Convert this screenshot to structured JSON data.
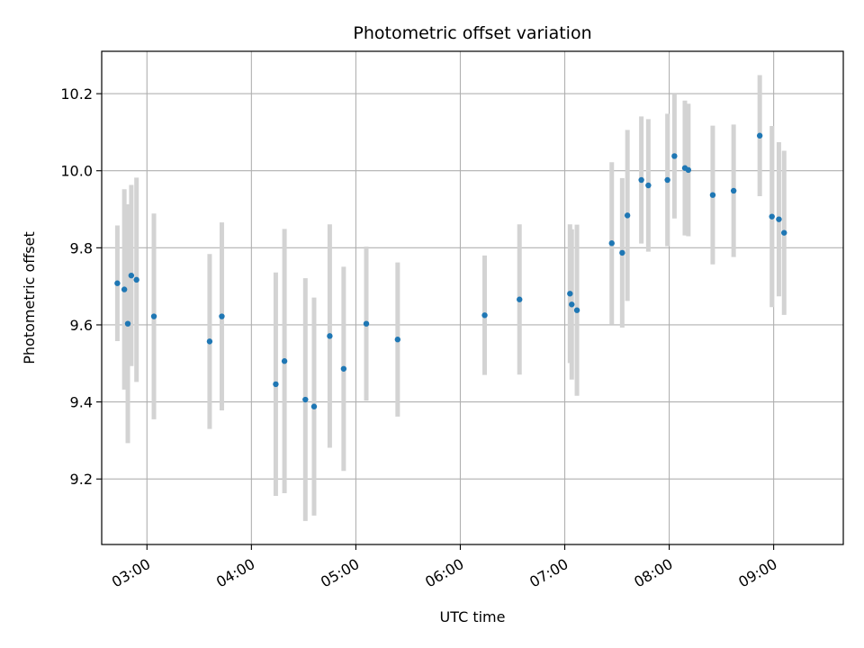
{
  "chart_data": {
    "type": "scatter",
    "title": "Photometric offset variation",
    "xlabel": "UTC time",
    "ylabel": "Photometric offset",
    "xlim": [
      "02:34",
      "09:40"
    ],
    "ylim": [
      9.03,
      10.31
    ],
    "grid": true,
    "x_ticks": [
      "03:00",
      "04:00",
      "05:00",
      "06:00",
      "07:00",
      "08:00",
      "09:00"
    ],
    "y_ticks": [
      9.2,
      9.4,
      9.6,
      9.8,
      10.0,
      10.2
    ],
    "point_color": "#1f77b4",
    "errorbar_color": "#d3d3d3",
    "series": [
      {
        "points": [
          {
            "x": "02:43",
            "y": 9.708,
            "err": 0.15
          },
          {
            "x": "02:47",
            "y": 9.692,
            "err": 0.26
          },
          {
            "x": "02:49",
            "y": 9.603,
            "err": 0.31
          },
          {
            "x": "02:51",
            "y": 9.728,
            "err": 0.235
          },
          {
            "x": "02:54",
            "y": 9.717,
            "err": 0.265
          },
          {
            "x": "03:04",
            "y": 9.622,
            "err": 0.267
          },
          {
            "x": "03:36",
            "y": 9.557,
            "err": 0.227
          },
          {
            "x": "03:43",
            "y": 9.622,
            "err": 0.244
          },
          {
            "x": "04:14",
            "y": 9.446,
            "err": 0.29
          },
          {
            "x": "04:19",
            "y": 9.506,
            "err": 0.343
          },
          {
            "x": "04:31",
            "y": 9.406,
            "err": 0.315
          },
          {
            "x": "04:36",
            "y": 9.388,
            "err": 0.283
          },
          {
            "x": "04:45",
            "y": 9.571,
            "err": 0.29
          },
          {
            "x": "04:53",
            "y": 9.486,
            "err": 0.265
          },
          {
            "x": "05:06",
            "y": 9.603,
            "err": 0.2
          },
          {
            "x": "05:24",
            "y": 9.562,
            "err": 0.2
          },
          {
            "x": "06:14",
            "y": 9.625,
            "err": 0.155
          },
          {
            "x": "06:34",
            "y": 9.666,
            "err": 0.195
          },
          {
            "x": "07:03",
            "y": 9.681,
            "err": 0.18
          },
          {
            "x": "07:04",
            "y": 9.653,
            "err": 0.195
          },
          {
            "x": "07:07",
            "y": 9.638,
            "err": 0.222
          },
          {
            "x": "07:27",
            "y": 9.812,
            "err": 0.21
          },
          {
            "x": "07:33",
            "y": 9.787,
            "err": 0.194
          },
          {
            "x": "07:36",
            "y": 9.884,
            "err": 0.222
          },
          {
            "x": "07:44",
            "y": 9.976,
            "err": 0.165
          },
          {
            "x": "07:48",
            "y": 9.962,
            "err": 0.172
          },
          {
            "x": "07:59",
            "y": 9.976,
            "err": 0.172
          },
          {
            "x": "08:03",
            "y": 10.038,
            "err": 0.162
          },
          {
            "x": "08:09",
            "y": 10.007,
            "err": 0.175
          },
          {
            "x": "08:11",
            "y": 10.002,
            "err": 0.172
          },
          {
            "x": "08:25",
            "y": 9.937,
            "err": 0.18
          },
          {
            "x": "08:37",
            "y": 9.948,
            "err": 0.172
          },
          {
            "x": "08:52",
            "y": 10.091,
            "err": 0.157
          },
          {
            "x": "08:59",
            "y": 9.881,
            "err": 0.235
          },
          {
            "x": "09:03",
            "y": 9.874,
            "err": 0.2
          },
          {
            "x": "09:06",
            "y": 9.839,
            "err": 0.213
          }
        ]
      }
    ]
  }
}
